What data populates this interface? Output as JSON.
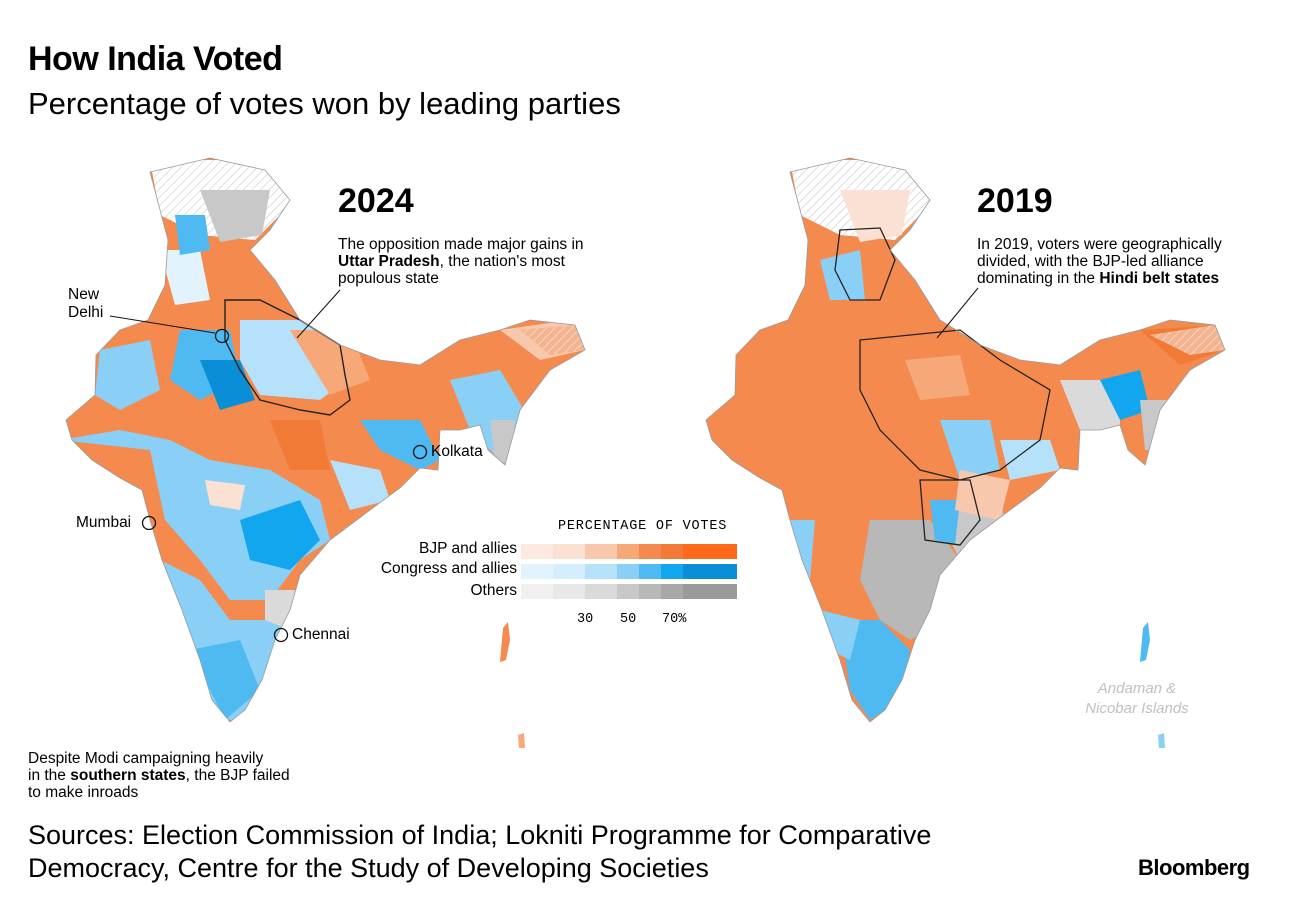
{
  "header": {
    "title": "How India Voted",
    "subtitle": "Percentage of votes won by leading parties"
  },
  "maps": {
    "left": {
      "year": "2024",
      "note_lines": [
        {
          "pre": "The opposition made major gains in",
          "bold": "",
          "post": ""
        },
        {
          "pre": "",
          "bold": "Uttar Pradesh",
          "post": ", the nation's most"
        },
        {
          "pre": "populous state",
          "bold": "",
          "post": ""
        }
      ],
      "south_note_lines": [
        {
          "pre": "Despite Modi campaigning heavily",
          "bold": "",
          "post": ""
        },
        {
          "pre": "in the ",
          "bold": "southern states",
          "post": ", the BJP failed"
        },
        {
          "pre": "to make inroads",
          "bold": "",
          "post": ""
        }
      ],
      "cities": {
        "new_delhi_line1": "New",
        "new_delhi_line2": "Delhi",
        "kolkata": "Kolkata",
        "mumbai": "Mumbai",
        "chennai": "Chennai"
      }
    },
    "right": {
      "year": "2019",
      "note_lines": [
        {
          "pre": "In 2019, voters were geographically",
          "bold": "",
          "post": ""
        },
        {
          "pre": "divided, with the BJP-led alliance",
          "bold": "",
          "post": ""
        },
        {
          "pre": "dominating in the ",
          "bold": "Hindi belt states",
          "post": ""
        }
      ],
      "islands_label": "Andaman & Nicobar Islands"
    }
  },
  "legend": {
    "title": "PERCENTAGE OF VOTES",
    "rows": [
      {
        "label": "BJP and allies",
        "colors": [
          "#fbe9e2",
          "#fbe0d4",
          "#f8c8ad",
          "#f6a878",
          "#f48a4e",
          "#f27a37",
          "#ff6a1a"
        ]
      },
      {
        "label": "Congress and allies",
        "colors": [
          "#e3f3fd",
          "#d4eefd",
          "#b5e1fa",
          "#8ad0f6",
          "#4fbaf2",
          "#12a6ee",
          "#0a8fd6"
        ]
      },
      {
        "label": "Others",
        "colors": [
          "#f0f0f0",
          "#e8e8e8",
          "#dadada",
          "#c8c8c8",
          "#b8b8b8",
          "#a8a8a8",
          "#9a9a9a"
        ]
      }
    ],
    "ticks": [
      "30",
      "50",
      "70%"
    ]
  },
  "footer": {
    "sources_line1": "Sources: Election Commission of India; Lokniti Programme for Comparative",
    "sources_line2": "Democracy, Centre for the Study of Developing Societies",
    "brand": "Bloomberg"
  }
}
